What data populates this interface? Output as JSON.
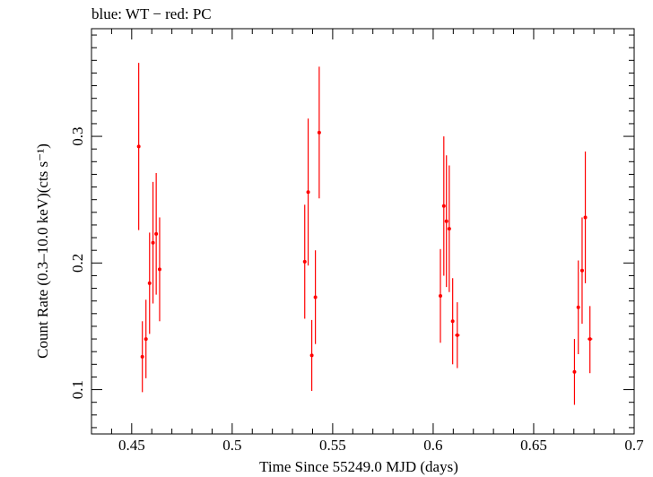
{
  "chart_data": {
    "type": "scatter",
    "title": "blue: WT − red: PC",
    "xlabel": "Time Since 55249.0 MJD (days)",
    "ylabel": "Count Rate (0.3–10.0 keV)(cts s⁻¹)",
    "xlim": [
      0.43,
      0.7
    ],
    "ylim": [
      0.065,
      0.385
    ],
    "xticks": [
      0.45,
      0.5,
      0.55,
      0.6,
      0.65,
      0.7
    ],
    "xtick_labels": [
      "0.45",
      "0.5",
      "0.55",
      "0.6",
      "0.65",
      "0.7"
    ],
    "yticks": [
      0.1,
      0.2,
      0.3
    ],
    "ytick_labels": [
      "0.1",
      "0.2",
      "0.3"
    ],
    "grid": false,
    "series": [
      {
        "color": "#ff0000",
        "points": [
          {
            "x": 0.4535,
            "y": 0.292,
            "ylo": 0.226,
            "yhi": 0.358,
            "xerr": 0.0007
          },
          {
            "x": 0.4553,
            "y": 0.126,
            "ylo": 0.098,
            "yhi": 0.154,
            "xerr": 0.0007
          },
          {
            "x": 0.4571,
            "y": 0.14,
            "ylo": 0.109,
            "yhi": 0.171,
            "xerr": 0.0007
          },
          {
            "x": 0.4589,
            "y": 0.184,
            "ylo": 0.144,
            "yhi": 0.224,
            "xerr": 0.0007
          },
          {
            "x": 0.4606,
            "y": 0.216,
            "ylo": 0.168,
            "yhi": 0.264,
            "xerr": 0.0007
          },
          {
            "x": 0.4622,
            "y": 0.223,
            "ylo": 0.175,
            "yhi": 0.271,
            "xerr": 0.0007
          },
          {
            "x": 0.4639,
            "y": 0.195,
            "ylo": 0.154,
            "yhi": 0.236,
            "xerr": 0.0007
          },
          {
            "x": 0.5361,
            "y": 0.201,
            "ylo": 0.156,
            "yhi": 0.246,
            "xerr": 0.0007
          },
          {
            "x": 0.5378,
            "y": 0.256,
            "ylo": 0.198,
            "yhi": 0.314,
            "xerr": 0.0007
          },
          {
            "x": 0.5396,
            "y": 0.127,
            "ylo": 0.099,
            "yhi": 0.155,
            "xerr": 0.0007
          },
          {
            "x": 0.5414,
            "y": 0.173,
            "ylo": 0.136,
            "yhi": 0.21,
            "xerr": 0.0007
          },
          {
            "x": 0.5433,
            "y": 0.303,
            "ylo": 0.251,
            "yhi": 0.355,
            "xerr": 0.0007
          },
          {
            "x": 0.6036,
            "y": 0.174,
            "ylo": 0.137,
            "yhi": 0.211,
            "xerr": 0.0007
          },
          {
            "x": 0.6053,
            "y": 0.245,
            "ylo": 0.19,
            "yhi": 0.3,
            "xerr": 0.0007
          },
          {
            "x": 0.6066,
            "y": 0.233,
            "ylo": 0.181,
            "yhi": 0.285,
            "xerr": 0.0007
          },
          {
            "x": 0.608,
            "y": 0.227,
            "ylo": 0.177,
            "yhi": 0.277,
            "xerr": 0.0007
          },
          {
            "x": 0.6097,
            "y": 0.154,
            "ylo": 0.12,
            "yhi": 0.188,
            "xerr": 0.0007
          },
          {
            "x": 0.612,
            "y": 0.143,
            "ylo": 0.117,
            "yhi": 0.169,
            "xerr": 0.0012
          },
          {
            "x": 0.6703,
            "y": 0.114,
            "ylo": 0.088,
            "yhi": 0.14,
            "xerr": 0.0007
          },
          {
            "x": 0.6722,
            "y": 0.165,
            "ylo": 0.128,
            "yhi": 0.202,
            "xerr": 0.0007
          },
          {
            "x": 0.6741,
            "y": 0.194,
            "ylo": 0.152,
            "yhi": 0.236,
            "xerr": 0.0007
          },
          {
            "x": 0.6757,
            "y": 0.236,
            "ylo": 0.184,
            "yhi": 0.288,
            "xerr": 0.0007
          },
          {
            "x": 0.678,
            "y": 0.14,
            "ylo": 0.113,
            "yhi": 0.166,
            "xerr": 0.0012
          }
        ]
      }
    ]
  }
}
